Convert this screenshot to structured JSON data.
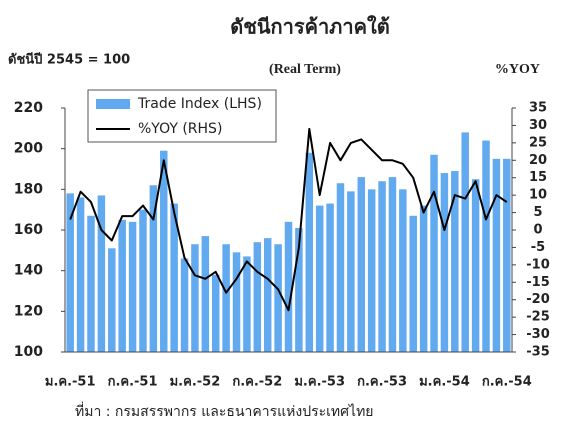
{
  "chart_data": {
    "type": "bar",
    "title": "ดัชนีการค้าภาคใต้",
    "subtitle": "ดัชนีปี 2545 = 100",
    "note": "(Real Term)",
    "y2_label": "%YOY",
    "source": "ที่มา : กรมสรรพากร และธนาคารแห่งประเทศไทย",
    "categories": [
      "ม.ค.-51",
      null,
      null,
      null,
      null,
      null,
      "ก.ค.-51",
      null,
      null,
      null,
      null,
      null,
      "ม.ค.-52",
      null,
      null,
      null,
      null,
      null,
      "ก.ค.-52",
      null,
      null,
      null,
      null,
      null,
      "ม.ค.-53",
      null,
      null,
      null,
      null,
      null,
      "ก.ค.-53",
      null,
      null,
      null,
      null,
      null,
      "ม.ค.-54",
      null,
      null,
      null,
      null,
      null,
      "ก.ค.-54"
    ],
    "series": [
      {
        "name": "Trade Index (LHS)",
        "type": "bar",
        "color": "#62aaf0",
        "axis": "y",
        "values": [
          178,
          176,
          167,
          177,
          151,
          165,
          164,
          170,
          182,
          199,
          173,
          146,
          153,
          157,
          138,
          153,
          149,
          147,
          154,
          156,
          153,
          164,
          161,
          198,
          172,
          173,
          183,
          179,
          186,
          180,
          184,
          186,
          180,
          167,
          172,
          197,
          188,
          189,
          208,
          185,
          204,
          195,
          195
        ]
      },
      {
        "name": "%YOY (RHS)",
        "type": "line",
        "color": "#000000",
        "axis": "y2",
        "values": [
          3,
          11,
          8,
          0,
          -3,
          4,
          4,
          7,
          3,
          20,
          5,
          -8,
          -13,
          -14,
          -12,
          -18,
          -14,
          -9,
          -12,
          -14,
          -17,
          -23,
          -5,
          29,
          10,
          25,
          20,
          25,
          26,
          23,
          20,
          20,
          19,
          15,
          5,
          11,
          0,
          10,
          9,
          14,
          3,
          10,
          8
        ]
      }
    ],
    "ylim": [
      100,
      220
    ],
    "yticks": [
      100,
      120,
      140,
      160,
      180,
      200,
      220
    ],
    "y2lim": [
      -35,
      35
    ],
    "y2ticks": [
      -35,
      -30,
      -25,
      -20,
      -15,
      -10,
      -5,
      0,
      5,
      10,
      15,
      20,
      25,
      30,
      35
    ],
    "grid": false
  }
}
